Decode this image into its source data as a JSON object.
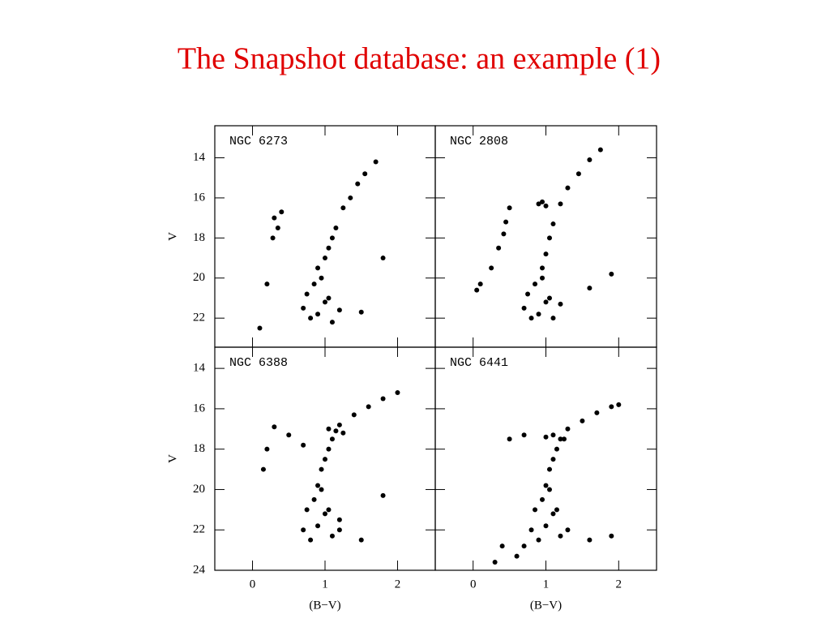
{
  "title": "The Snapshot database: an example (1)",
  "chart_data": [
    {
      "type": "scatter",
      "title": "NGC 6273",
      "ylabel": "V",
      "color": "#000000",
      "xlim": [
        -0.52,
        2.52
      ],
      "ylim": [
        23.45,
        12.4
      ],
      "xticks": [
        0,
        1,
        2
      ],
      "yticks": [
        14,
        16,
        18,
        20,
        22
      ],
      "x": [
        0.7,
        0.8,
        0.9,
        1.0,
        1.1,
        0.75,
        0.85,
        0.95,
        1.05,
        1.2,
        0.9,
        1.0,
        1.05,
        1.1,
        1.15,
        1.25,
        1.35,
        1.45,
        1.55,
        1.7,
        0.3,
        0.35,
        0.28,
        0.4,
        0.2,
        1.5,
        0.1,
        1.8
      ],
      "y": [
        21.5,
        22,
        21.8,
        21.2,
        22.2,
        20.8,
        20.3,
        20,
        21,
        21.6,
        19.5,
        19,
        18.5,
        18,
        17.5,
        16.5,
        16,
        15.3,
        14.8,
        14.2,
        17,
        17.5,
        18,
        16.7,
        20.3,
        21.7,
        22.5,
        19
      ]
    },
    {
      "type": "scatter",
      "title": "NGC 2808",
      "color": "#000000",
      "xlim": [
        -0.52,
        2.52
      ],
      "ylim": [
        23.45,
        12.4
      ],
      "xticks": [
        0,
        1,
        2
      ],
      "yticks": [
        14,
        16,
        18,
        20,
        22
      ],
      "x": [
        0.7,
        0.8,
        0.9,
        1.0,
        1.1,
        0.75,
        0.85,
        0.95,
        1.05,
        1.2,
        0.95,
        1.0,
        1.05,
        1.1,
        1.2,
        1.3,
        1.45,
        1.6,
        1.75,
        0.9,
        0.95,
        1.0,
        0.5,
        0.45,
        0.42,
        0.35,
        0.25,
        0.1,
        0.05,
        1.6,
        1.9
      ],
      "y": [
        21.5,
        22,
        21.8,
        21.2,
        22,
        20.8,
        20.3,
        20,
        21,
        21.3,
        19.5,
        18.8,
        18,
        17.3,
        16.3,
        15.5,
        14.8,
        14.1,
        13.6,
        16.3,
        16.2,
        16.4,
        16.5,
        17.2,
        17.8,
        18.5,
        19.5,
        20.3,
        20.6,
        20.5,
        19.8
      ]
    },
    {
      "type": "scatter",
      "title": "NGC 6388",
      "ylabel": "V",
      "xlabel": "(B−V)",
      "color": "#000000",
      "xlim": [
        -0.52,
        2.52
      ],
      "ylim": [
        24,
        12.95
      ],
      "xticks": [
        0,
        1,
        2
      ],
      "yticks": [
        14,
        16,
        18,
        20,
        22,
        24
      ],
      "x": [
        0.7,
        0.8,
        0.9,
        1.0,
        1.1,
        1.2,
        0.75,
        0.85,
        0.95,
        1.05,
        1.2,
        0.9,
        0.95,
        1.0,
        1.05,
        1.1,
        1.2,
        1.4,
        1.6,
        1.8,
        2.0,
        1.05,
        1.15,
        1.25,
        0.3,
        0.2,
        0.5,
        0.7,
        0.15,
        1.5,
        1.8
      ],
      "y": [
        22,
        22.5,
        21.8,
        21.2,
        22.3,
        22,
        21,
        20.5,
        20,
        21,
        21.5,
        19.8,
        19,
        18.5,
        18,
        17.5,
        16.8,
        16.3,
        15.9,
        15.5,
        15.2,
        17.0,
        17.1,
        17.2,
        16.9,
        18,
        17.3,
        17.8,
        19,
        22.5,
        20.3
      ]
    },
    {
      "type": "scatter",
      "title": "NGC 6441",
      "xlabel": "(B−V)",
      "color": "#000000",
      "xlim": [
        -0.52,
        2.52
      ],
      "ylim": [
        24,
        12.95
      ],
      "xticks": [
        0,
        1,
        2
      ],
      "yticks": [
        14,
        16,
        18,
        20,
        22,
        24
      ],
      "x": [
        0.8,
        0.9,
        1.0,
        1.1,
        1.2,
        1.3,
        0.7,
        0.85,
        0.95,
        1.05,
        1.15,
        1.0,
        1.05,
        1.1,
        1.15,
        1.2,
        1.3,
        1.5,
        1.7,
        1.9,
        2.0,
        1.0,
        1.1,
        1.25,
        0.5,
        0.7,
        0.4,
        0.6,
        1.6,
        1.9,
        0.3
      ],
      "y": [
        22,
        22.5,
        21.8,
        21.2,
        22.3,
        22,
        22.8,
        21,
        20.5,
        20,
        21,
        19.8,
        19,
        18.5,
        18,
        17.5,
        17,
        16.6,
        16.2,
        15.9,
        15.8,
        17.4,
        17.3,
        17.5,
        17.5,
        17.3,
        22.8,
        23.3,
        22.5,
        22.3,
        23.6
      ]
    }
  ]
}
